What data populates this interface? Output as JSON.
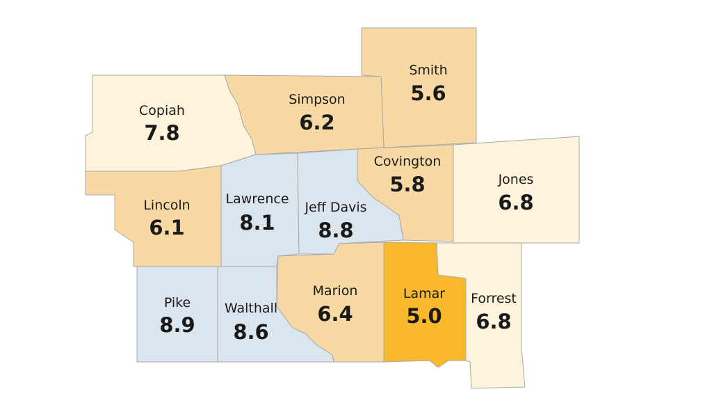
{
  "colors": {
    "lowest": "#fab82e",
    "low": "#f8d9a3",
    "mid": "#fef4dc",
    "high": "#dbe5ee",
    "border": "#a8a8a8"
  },
  "counties": [
    {
      "id": "copiah",
      "name": "Copiah",
      "value": "7.8",
      "band": "mid"
    },
    {
      "id": "simpson",
      "name": "Simpson",
      "value": "6.2",
      "band": "low"
    },
    {
      "id": "smith",
      "name": "Smith",
      "value": "5.6",
      "band": "low"
    },
    {
      "id": "covington",
      "name": "Covington",
      "value": "5.8",
      "band": "low"
    },
    {
      "id": "jones",
      "name": "Jones",
      "value": "6.8",
      "band": "mid"
    },
    {
      "id": "lincoln",
      "name": "Lincoln",
      "value": "6.1",
      "band": "low"
    },
    {
      "id": "lawrence",
      "name": "Lawrence",
      "value": "8.1",
      "band": "high"
    },
    {
      "id": "jeff-davis",
      "name": "Jeff Davis",
      "value": "8.8",
      "band": "high"
    },
    {
      "id": "pike",
      "name": "Pike",
      "value": "8.9",
      "band": "high"
    },
    {
      "id": "walthall",
      "name": "Walthall",
      "value": "8.6",
      "band": "high"
    },
    {
      "id": "marion",
      "name": "Marion",
      "value": "6.4",
      "band": "low"
    },
    {
      "id": "lamar",
      "name": "Lamar",
      "value": "5.0",
      "band": "lowest"
    },
    {
      "id": "forrest",
      "name": "Forrest",
      "value": "6.8",
      "band": "mid"
    }
  ]
}
